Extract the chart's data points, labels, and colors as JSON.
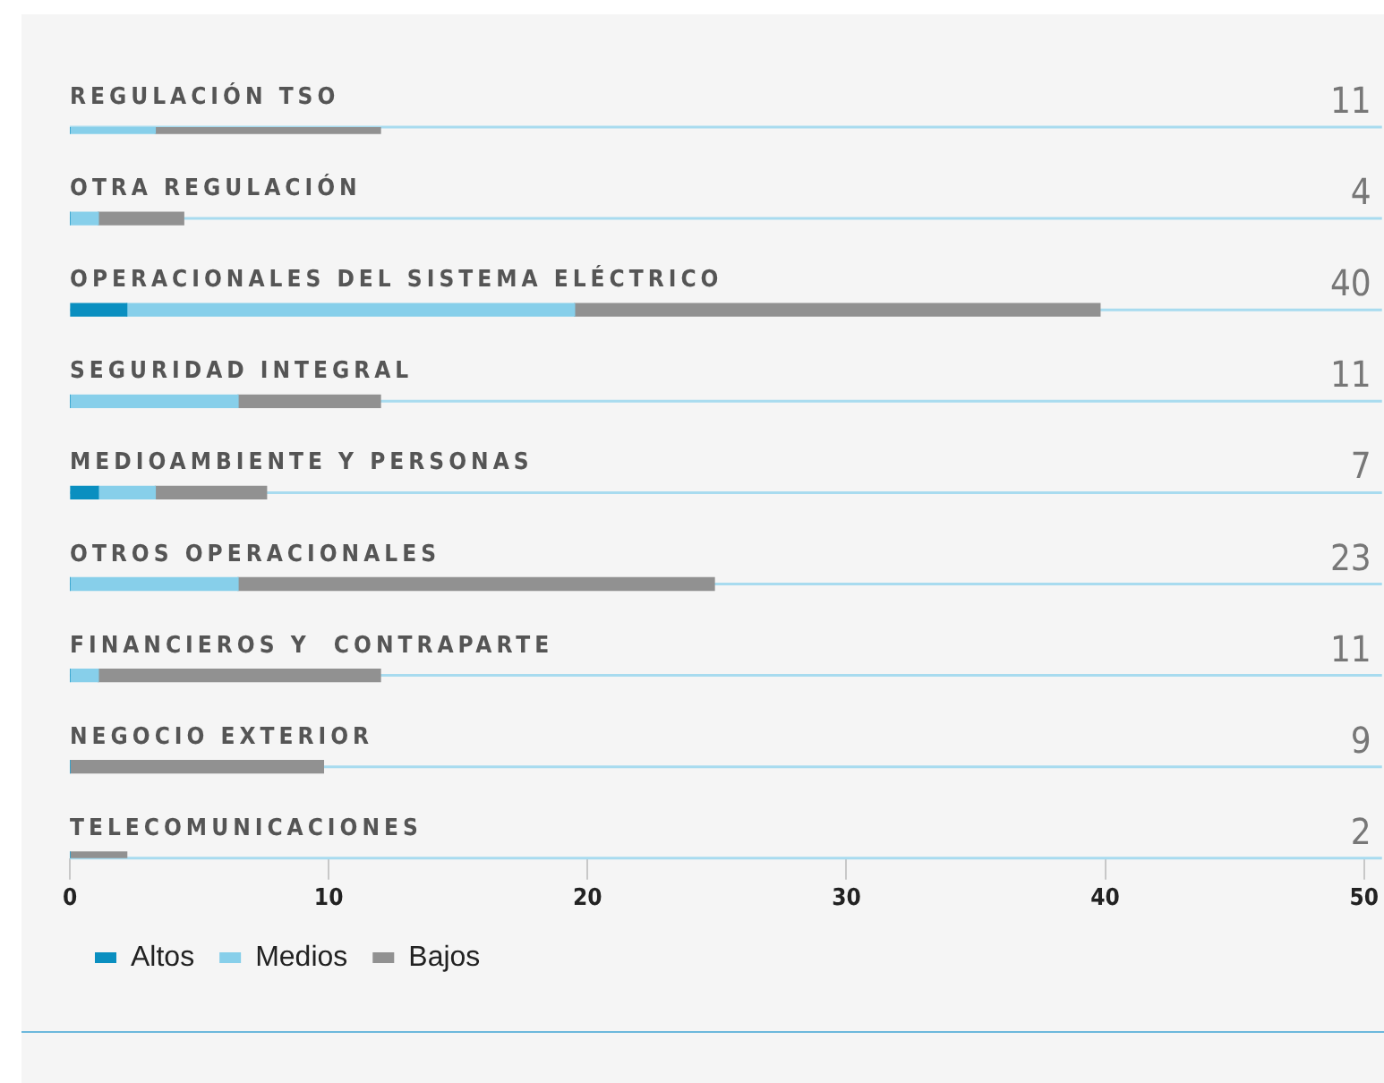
{
  "chart_data": {
    "type": "bar",
    "orientation": "horizontal",
    "stacked": true,
    "categories": [
      "REGULACIÓN TSO",
      "OTRA REGULACIÓN",
      "OPERACIONALES DEL SISTEMA ELÉCTRICO",
      "SEGURIDAD INTEGRAL",
      "MEDIOAMBIENTE Y PERSONAS",
      "OTROS OPERACIONALES",
      "FINANCIEROS Y  CONTRAPARTE",
      "NEGOCIO EXTERIOR",
      "TELECOMUNICACIONES"
    ],
    "series": [
      {
        "name": "Altos",
        "color": "#0a8fc0",
        "values": [
          0,
          0,
          2.2,
          0,
          1.1,
          0,
          0,
          0,
          0
        ]
      },
      {
        "name": "Medios",
        "color": "#87cfea",
        "values": [
          3.3,
          1.1,
          17.3,
          6.5,
          2.2,
          6.5,
          1.1,
          0,
          0
        ]
      },
      {
        "name": "Bajos",
        "color": "#919191",
        "values": [
          8.7,
          3.3,
          20.3,
          5.5,
          4.3,
          18.4,
          10.9,
          9.8,
          2.2
        ]
      }
    ],
    "annotations": [
      "11",
      "4",
      "40",
      "11",
      "7",
      "23",
      "11",
      "9",
      "2"
    ],
    "xlim": [
      0,
      50
    ],
    "xticks": [
      0,
      10,
      20,
      30,
      40,
      50
    ],
    "grid": false,
    "ref_lines": [
      {
        "axis": "y",
        "value": "REGULACIÓN TSO",
        "color": "#a8dbef"
      },
      {
        "axis": "y",
        "value": "OTRA REGULACIÓN",
        "color": "#a8dbef"
      },
      {
        "axis": "y",
        "value": "OPERACIONALES DEL SISTEMA ELÉCTRICO",
        "color": "#a8dbef"
      },
      {
        "axis": "y",
        "value": "SEGURIDAD INTEGRAL",
        "color": "#a8dbef"
      },
      {
        "axis": "y",
        "value": "MEDIOAMBIENTE Y PERSONAS",
        "color": "#a8dbef"
      },
      {
        "axis": "y",
        "value": "OTROS OPERACIONALES",
        "color": "#a8dbef"
      },
      {
        "axis": "y",
        "value": "FINANCIEROS Y  CONTRAPARTE",
        "color": "#a8dbef"
      },
      {
        "axis": "y",
        "value": "NEGOCIO EXTERIOR",
        "color": "#a8dbef"
      },
      {
        "axis": "y",
        "value": "TELECOMUNICACIONES",
        "color": "#a8dbef"
      }
    ],
    "legend": "bottom left"
  }
}
